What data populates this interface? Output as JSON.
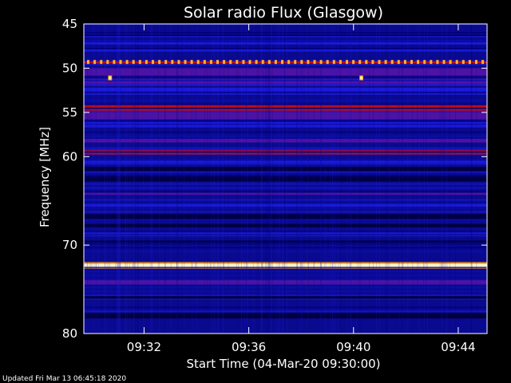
{
  "chart_data": {
    "type": "heatmap",
    "title": "Solar radio Flux (Glasgow)",
    "ylabel": "Frequency [MHz]",
    "xlabel": "Start Time (04-Mar-20 09:30:00)",
    "y_axis": {
      "range": [
        45,
        80
      ],
      "ticks": [
        {
          "value": 45,
          "label": "45"
        },
        {
          "value": 50,
          "label": "50"
        },
        {
          "value": 55,
          "label": "55"
        },
        {
          "value": 60,
          "label": "60"
        },
        {
          "value": 70,
          "label": "70"
        },
        {
          "value": 80,
          "label": "80"
        }
      ]
    },
    "x_axis": {
      "range_minutes": [
        -0.3,
        15.1
      ],
      "ticks": [
        {
          "minute": 2,
          "label": "09:32"
        },
        {
          "minute": 6,
          "label": "09:36"
        },
        {
          "minute": 10,
          "label": "09:40"
        },
        {
          "minute": 14,
          "label": "09:44"
        }
      ]
    },
    "colors": {
      "background": "#0a0a90",
      "low": "#000040",
      "mid": "#1a1ad8",
      "high": "#c01010",
      "peak": "#fff8c0"
    },
    "bands": [
      {
        "freq": 46.3,
        "width": 0.15,
        "level": "low"
      },
      {
        "freq": 47.2,
        "width": 0.25,
        "level": "mid"
      },
      {
        "freq": 48.0,
        "width": 0.25,
        "level": "mid"
      },
      {
        "freq": 49.3,
        "width": 0.35,
        "level": "high-dotted"
      },
      {
        "freq": 50.5,
        "width": 1.0,
        "level": "purple"
      },
      {
        "freq": 51.6,
        "width": 0.8,
        "level": "purple"
      },
      {
        "freq": 52.6,
        "width": 0.8,
        "level": "mid"
      },
      {
        "freq": 54.5,
        "width": 0.55,
        "level": "high"
      },
      {
        "freq": 55.4,
        "width": 0.9,
        "level": "purple"
      },
      {
        "freq": 56.4,
        "width": 0.6,
        "level": "mid"
      },
      {
        "freq": 58.2,
        "width": 0.4,
        "level": "purple"
      },
      {
        "freq": 59.5,
        "width": 0.35,
        "level": "high"
      },
      {
        "freq": 60.6,
        "width": 0.3,
        "level": "mid"
      },
      {
        "freq": 61.4,
        "width": 0.5,
        "level": "low"
      },
      {
        "freq": 62.5,
        "width": 0.6,
        "level": "low"
      },
      {
        "freq": 64.2,
        "width": 0.25,
        "level": "purple"
      },
      {
        "freq": 65.5,
        "width": 0.3,
        "level": "mid"
      },
      {
        "freq": 66.8,
        "width": 0.6,
        "level": "low"
      },
      {
        "freq": 67.8,
        "width": 0.4,
        "level": "low"
      },
      {
        "freq": 68.6,
        "width": 0.3,
        "level": "mid"
      },
      {
        "freq": 69.5,
        "width": 0.4,
        "level": "low"
      },
      {
        "freq": 72.3,
        "width": 0.4,
        "level": "peak"
      },
      {
        "freq": 74.2,
        "width": 0.5,
        "level": "purple"
      },
      {
        "freq": 76.0,
        "width": 0.5,
        "level": "low"
      },
      {
        "freq": 78.0,
        "width": 0.6,
        "level": "low"
      }
    ],
    "bursts": [
      {
        "minute": 0.7,
        "freq": 51.1
      },
      {
        "minute": 10.3,
        "freq": 51.1
      }
    ],
    "legend": "none",
    "grid": false
  },
  "footer": {
    "updated": "Updated Fri Mar 13 06:45:18 2020"
  }
}
